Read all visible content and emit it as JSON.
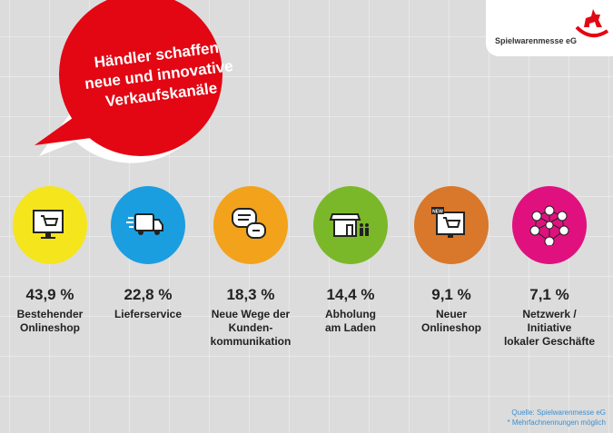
{
  "title": "Händler schaffen\nneue und innovative\nVerkaufskanäle",
  "logo": {
    "text": "Spielwarenmesse eG"
  },
  "items": [
    {
      "value": "43,9 %",
      "label": "Bestehender\nOnlineshop",
      "color": "#f5e51d",
      "icon": "monitor-cart-icon"
    },
    {
      "value": "22,8 %",
      "label": "Lieferservice",
      "color": "#1a9ee0",
      "icon": "delivery-truck-icon"
    },
    {
      "value": "18,3 %",
      "label": "Neue Wege der\nKunden-\nkommunikation",
      "color": "#f2a31b",
      "icon": "speech-bubbles-icon"
    },
    {
      "value": "14,4 %",
      "label": "Abholung\nam Laden",
      "color": "#7ab829",
      "icon": "storefront-icon"
    },
    {
      "value": "9,1 %",
      "label": "Neuer\nOnlineshop",
      "color": "#d9772a",
      "icon": "new-monitor-cart-icon"
    },
    {
      "value": "7,1 %",
      "label": "Netzwerk /\nInitiative\nlokaler Geschäfte",
      "color": "#e0117f",
      "icon": "network-people-icon"
    }
  ],
  "new_badge": "NEW",
  "source": "Quelle: Spielwarenmesse eG",
  "footnote": "* Mehrfachnennungen möglich"
}
